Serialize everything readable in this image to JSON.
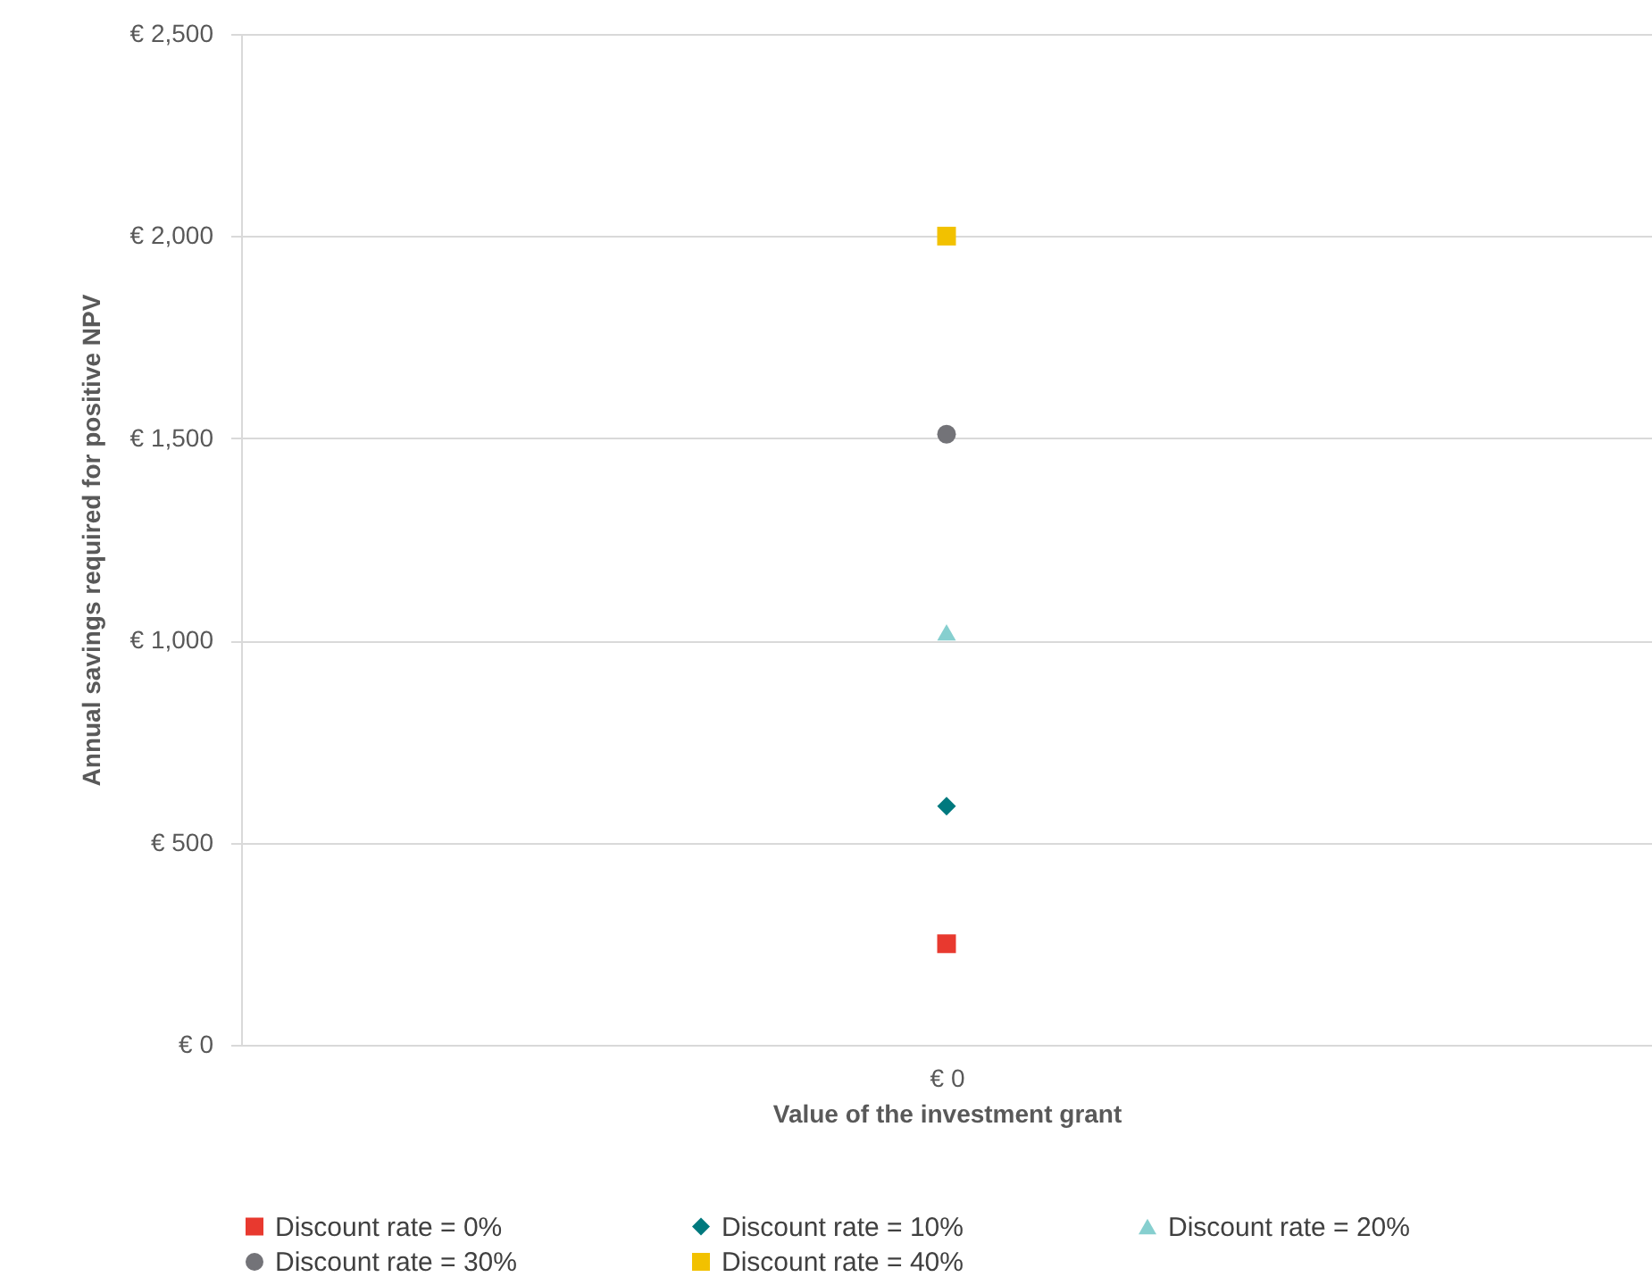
{
  "chart_data": {
    "type": "scatter",
    "xlabel": "Value of the investment grant",
    "ylabel": "Annual savings required for positive NPV",
    "categories": [
      "€ 0"
    ],
    "series": [
      {
        "name": "Discount rate = 0%",
        "color": "#e8392f",
        "marker": "square",
        "values": [
          250
        ]
      },
      {
        "name": "Discount rate = 10%",
        "color": "#00797e",
        "marker": "diamond",
        "values": [
          590
        ]
      },
      {
        "name": "Discount rate = 20%",
        "color": "#86cfcf",
        "marker": "triangle",
        "values": [
          1020
        ]
      },
      {
        "name": "Discount rate = 30%",
        "color": "#737378",
        "marker": "circle",
        "values": [
          1510
        ]
      },
      {
        "name": "Discount rate = 40%",
        "color": "#f2c100",
        "marker": "square",
        "values": [
          2000
        ]
      }
    ],
    "ylim": [
      0,
      2500
    ],
    "yticks": [
      {
        "value": 0,
        "label": "€ 0"
      },
      {
        "value": 500,
        "label": "€ 500"
      },
      {
        "value": 1000,
        "label": "€ 1,000"
      },
      {
        "value": 1500,
        "label": "€ 1,500"
      },
      {
        "value": 2000,
        "label": "€ 2,000"
      },
      {
        "value": 2500,
        "label": "€ 2,500"
      }
    ],
    "grid": "y",
    "legend": "bottom"
  }
}
